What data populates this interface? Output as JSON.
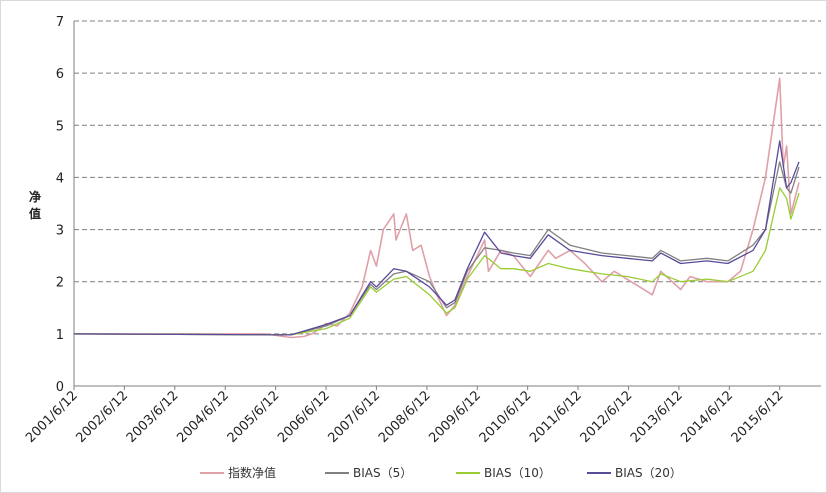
{
  "chart_data": {
    "type": "line",
    "title": "",
    "xlabel": "",
    "ylabel": "净值",
    "ylim": [
      0,
      7
    ],
    "yticks": [
      "0",
      "1",
      "2",
      "3",
      "4",
      "5",
      "6",
      "7"
    ],
    "grid": "horizontal-dashed",
    "legend_position": "bottom",
    "x_range": [
      "2001/6/12",
      "2015/10/30"
    ],
    "x_tick_labels": [
      "2001/6/12",
      "2002/6/12",
      "2003/6/12",
      "2004/6/12",
      "2005/6/12",
      "2006/6/12",
      "2007/6/12",
      "2008/6/12",
      "2009/6/12",
      "2010/6/12",
      "2011/6/12",
      "2012/6/12",
      "2013/6/12",
      "2014/6/12",
      "2015/6/12"
    ],
    "series": [
      {
        "name": "指数净值",
        "color": "#e0a0a8",
        "points": [
          [
            "2001/6/12",
            1.0
          ],
          [
            "2005/4/1",
            1.0
          ],
          [
            "2005/10/1",
            0.93
          ],
          [
            "2006/1/1",
            0.95
          ],
          [
            "2006/3/1",
            1.0
          ],
          [
            "2006/5/1",
            1.1
          ],
          [
            "2006/6/12",
            1.2
          ],
          [
            "2006/9/1",
            1.15
          ],
          [
            "2006/12/1",
            1.4
          ],
          [
            "2007/3/1",
            1.9
          ],
          [
            "2007/5/1",
            2.6
          ],
          [
            "2007/6/12",
            2.3
          ],
          [
            "2007/8/1",
            3.0
          ],
          [
            "2007/10/16",
            3.3
          ],
          [
            "2007/11/1",
            2.8
          ],
          [
            "2008/1/15",
            3.3
          ],
          [
            "2008/3/1",
            2.6
          ],
          [
            "2008/5/1",
            2.7
          ],
          [
            "2008/7/1",
            2.1
          ],
          [
            "2008/9/1",
            1.7
          ],
          [
            "2008/11/1",
            1.35
          ],
          [
            "2009/1/1",
            1.55
          ],
          [
            "2009/4/1",
            2.1
          ],
          [
            "2009/8/4",
            2.8
          ],
          [
            "2009/9/1",
            2.2
          ],
          [
            "2009/12/1",
            2.6
          ],
          [
            "2010/3/1",
            2.5
          ],
          [
            "2010/7/1",
            2.1
          ],
          [
            "2010/11/8",
            2.6
          ],
          [
            "2011/1/1",
            2.45
          ],
          [
            "2011/4/15",
            2.6
          ],
          [
            "2011/8/1",
            2.35
          ],
          [
            "2011/12/1",
            2.0
          ],
          [
            "2012/3/1",
            2.2
          ],
          [
            "2012/9/1",
            1.9
          ],
          [
            "2012/12/1",
            1.75
          ],
          [
            "2013/2/1",
            2.2
          ],
          [
            "2013/6/25",
            1.85
          ],
          [
            "2013/9/1",
            2.1
          ],
          [
            "2014/1/1",
            2.0
          ],
          [
            "2014/6/1",
            2.0
          ],
          [
            "2014/9/1",
            2.2
          ],
          [
            "2014/12/1",
            3.0
          ],
          [
            "2015/3/1",
            4.0
          ],
          [
            "2015/6/12",
            5.9
          ],
          [
            "2015/7/8",
            4.2
          ],
          [
            "2015/8/1",
            4.6
          ],
          [
            "2015/9/1",
            3.3
          ],
          [
            "2015/10/30",
            3.9
          ]
        ]
      },
      {
        "name": "BIAS（5）",
        "color": "#808080",
        "points": [
          [
            "2001/6/12",
            1.0
          ],
          [
            "2005/10/1",
            0.98
          ],
          [
            "2006/6/12",
            1.15
          ],
          [
            "2006/12/1",
            1.35
          ],
          [
            "2007/5/1",
            1.95
          ],
          [
            "2007/6/12",
            1.85
          ],
          [
            "2007/10/16",
            2.15
          ],
          [
            "2008/1/15",
            2.2
          ],
          [
            "2008/7/1",
            2.0
          ],
          [
            "2008/11/1",
            1.5
          ],
          [
            "2009/1/1",
            1.6
          ],
          [
            "2009/4/1",
            2.2
          ],
          [
            "2009/8/4",
            2.65
          ],
          [
            "2009/12/1",
            2.6
          ],
          [
            "2010/3/1",
            2.55
          ],
          [
            "2010/7/1",
            2.5
          ],
          [
            "2010/11/8",
            3.0
          ],
          [
            "2011/4/15",
            2.7
          ],
          [
            "2011/12/1",
            2.55
          ],
          [
            "2012/6/1",
            2.5
          ],
          [
            "2012/12/1",
            2.45
          ],
          [
            "2013/2/1",
            2.6
          ],
          [
            "2013/6/25",
            2.4
          ],
          [
            "2014/1/1",
            2.45
          ],
          [
            "2014/6/1",
            2.4
          ],
          [
            "2014/12/1",
            2.7
          ],
          [
            "2015/3/1",
            3.0
          ],
          [
            "2015/6/12",
            4.3
          ],
          [
            "2015/8/1",
            3.8
          ],
          [
            "2015/9/1",
            3.7
          ],
          [
            "2015/10/30",
            4.2
          ]
        ]
      },
      {
        "name": "BIAS（10）",
        "color": "#99cc33",
        "points": [
          [
            "2001/6/12",
            1.0
          ],
          [
            "2005/10/1",
            0.98
          ],
          [
            "2006/6/12",
            1.1
          ],
          [
            "2006/12/1",
            1.3
          ],
          [
            "2007/5/1",
            1.9
          ],
          [
            "2007/6/12",
            1.8
          ],
          [
            "2007/10/16",
            2.05
          ],
          [
            "2008/1/15",
            2.1
          ],
          [
            "2008/7/1",
            1.75
          ],
          [
            "2008/11/1",
            1.4
          ],
          [
            "2009/1/1",
            1.5
          ],
          [
            "2009/4/1",
            2.05
          ],
          [
            "2009/8/4",
            2.5
          ],
          [
            "2009/12/1",
            2.25
          ],
          [
            "2010/3/1",
            2.25
          ],
          [
            "2010/7/1",
            2.2
          ],
          [
            "2010/11/8",
            2.35
          ],
          [
            "2011/4/15",
            2.25
          ],
          [
            "2011/12/1",
            2.15
          ],
          [
            "2012/6/1",
            2.1
          ],
          [
            "2012/12/1",
            2.0
          ],
          [
            "2013/2/1",
            2.15
          ],
          [
            "2013/6/25",
            2.0
          ],
          [
            "2014/1/1",
            2.05
          ],
          [
            "2014/6/1",
            2.0
          ],
          [
            "2014/12/1",
            2.2
          ],
          [
            "2015/3/1",
            2.6
          ],
          [
            "2015/6/12",
            3.8
          ],
          [
            "2015/8/1",
            3.6
          ],
          [
            "2015/9/1",
            3.2
          ],
          [
            "2015/10/30",
            3.7
          ]
        ]
      },
      {
        "name": "BIAS（20）",
        "color": "#5a4a9a",
        "points": [
          [
            "2001/6/12",
            1.0
          ],
          [
            "2005/10/1",
            0.98
          ],
          [
            "2006/6/12",
            1.18
          ],
          [
            "2006/12/1",
            1.35
          ],
          [
            "2007/5/1",
            2.0
          ],
          [
            "2007/6/12",
            1.9
          ],
          [
            "2007/10/16",
            2.25
          ],
          [
            "2008/1/15",
            2.2
          ],
          [
            "2008/7/1",
            1.9
          ],
          [
            "2008/11/1",
            1.55
          ],
          [
            "2009/1/1",
            1.65
          ],
          [
            "2009/4/1",
            2.25
          ],
          [
            "2009/8/4",
            2.95
          ],
          [
            "2009/12/1",
            2.55
          ],
          [
            "2010/3/1",
            2.5
          ],
          [
            "2010/7/1",
            2.45
          ],
          [
            "2010/11/8",
            2.9
          ],
          [
            "2011/4/15",
            2.6
          ],
          [
            "2011/12/1",
            2.5
          ],
          [
            "2012/6/1",
            2.45
          ],
          [
            "2012/12/1",
            2.4
          ],
          [
            "2013/2/1",
            2.55
          ],
          [
            "2013/6/25",
            2.35
          ],
          [
            "2014/1/1",
            2.4
          ],
          [
            "2014/6/1",
            2.35
          ],
          [
            "2014/12/1",
            2.6
          ],
          [
            "2015/3/1",
            3.0
          ],
          [
            "2015/6/12",
            4.7
          ],
          [
            "2015/8/1",
            3.8
          ],
          [
            "2015/9/1",
            3.9
          ],
          [
            "2015/10/30",
            4.3
          ]
        ]
      }
    ]
  }
}
